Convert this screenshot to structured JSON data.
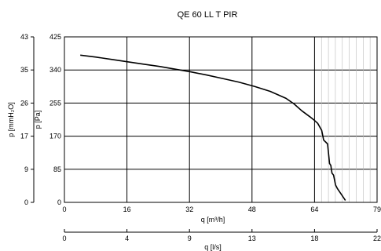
{
  "chart_data": {
    "type": "line",
    "title": "QE 60 LL T PIR",
    "x_primary": {
      "label": "q [m³/h]",
      "ticks": [
        "0",
        "16",
        "32",
        "48",
        "64",
        "79"
      ],
      "range": [
        0,
        79
      ]
    },
    "x_secondary": {
      "label": "q [l/s]",
      "ticks": [
        "0",
        "4",
        "9",
        "13",
        "18",
        "22"
      ],
      "range": [
        0,
        22
      ]
    },
    "y_primary": {
      "label": "p [Pa]",
      "ticks": [
        "0",
        "85",
        "170",
        "255",
        "340",
        "425"
      ],
      "range": [
        0,
        425
      ]
    },
    "y_secondary": {
      "label": "p [mmH₂O]",
      "ticks": [
        "0",
        "9",
        "17",
        "26",
        "35",
        "43"
      ],
      "range": [
        0,
        43
      ]
    },
    "grid": true,
    "series": [
      {
        "x": [
          4,
          8,
          12,
          16,
          20,
          24,
          28,
          32,
          36,
          40,
          44,
          48,
          52,
          56,
          58,
          60,
          62,
          63,
          64,
          65,
          65.5,
          66,
          66.5,
          67,
          67.3,
          67.6,
          68,
          68.5,
          69,
          70,
          71
        ],
        "values": [
          378,
          373,
          367,
          361,
          355,
          349,
          342,
          335,
          327,
          318,
          309,
          298,
          285,
          267,
          253,
          235,
          220,
          212,
          203,
          185,
          160,
          155,
          150,
          100,
          95,
          75,
          70,
          45,
          35,
          20,
          5
        ]
      }
    ]
  }
}
